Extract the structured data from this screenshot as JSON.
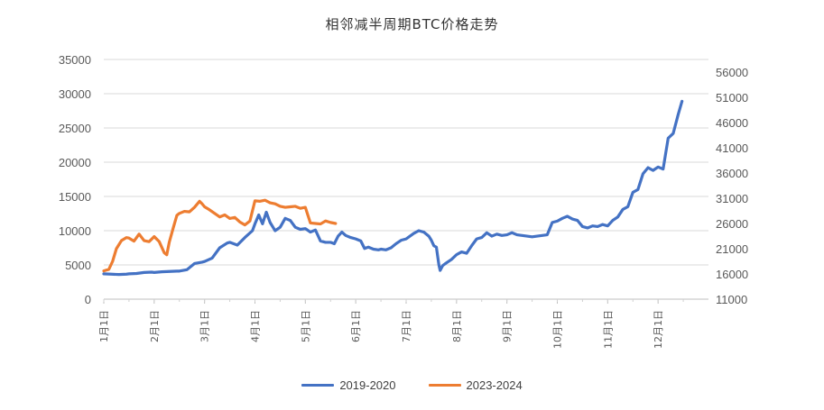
{
  "chart_data": {
    "type": "line",
    "title": "相邻减半周期BTC价格走势",
    "x_categories": [
      "1月1日",
      "2月1日",
      "3月1日",
      "4月1日",
      "5月1日",
      "6月1日",
      "7月1日",
      "8月1日",
      "9月1日",
      "10月1日",
      "11月1日",
      "12月1日"
    ],
    "y_left": {
      "ticks": [
        0,
        5000,
        10000,
        15000,
        20000,
        25000,
        30000,
        35000
      ],
      "range": [
        0,
        35000
      ]
    },
    "y_right": {
      "ticks": [
        11000,
        16000,
        21000,
        26000,
        31000,
        36000,
        41000,
        46000,
        51000,
        56000
      ],
      "range": [
        11000,
        58500
      ]
    },
    "grid": true,
    "legend_position": "bottom",
    "series": [
      {
        "name": "2019-2020",
        "axis": "left",
        "color": "#4472C4",
        "points": [
          [
            0,
            3700
          ],
          [
            0.3,
            3650
          ],
          [
            0.6,
            3600
          ],
          [
            0.9,
            3650
          ],
          [
            1.0,
            3700
          ],
          [
            1.3,
            3750
          ],
          [
            1.6,
            3900
          ],
          [
            1.9,
            3950
          ],
          [
            2.0,
            3900
          ],
          [
            2.3,
            4000
          ],
          [
            2.6,
            4050
          ],
          [
            2.9,
            4100
          ],
          [
            3.0,
            4100
          ],
          [
            3.3,
            4300
          ],
          [
            3.6,
            5200
          ],
          [
            3.9,
            5400
          ],
          [
            4.0,
            5500
          ],
          [
            4.3,
            6000
          ],
          [
            4.6,
            7500
          ],
          [
            4.9,
            8200
          ],
          [
            5.0,
            8300
          ],
          [
            5.3,
            7900
          ],
          [
            5.6,
            9000
          ],
          [
            5.9,
            10000
          ],
          [
            6.0,
            11000
          ],
          [
            6.15,
            12300
          ],
          [
            6.3,
            11000
          ],
          [
            6.45,
            12700
          ],
          [
            6.6,
            11200
          ],
          [
            6.8,
            10000
          ],
          [
            7.0,
            10500
          ],
          [
            7.2,
            11800
          ],
          [
            7.4,
            11500
          ],
          [
            7.6,
            10500
          ],
          [
            7.8,
            10200
          ],
          [
            8.0,
            10300
          ],
          [
            8.2,
            9800
          ],
          [
            8.4,
            10100
          ],
          [
            8.6,
            8500
          ],
          [
            8.8,
            8300
          ],
          [
            9.0,
            8300
          ],
          [
            9.15,
            8100
          ],
          [
            9.3,
            9200
          ],
          [
            9.45,
            9800
          ],
          [
            9.6,
            9300
          ],
          [
            9.8,
            9000
          ],
          [
            10.0,
            8800
          ],
          [
            10.2,
            8500
          ],
          [
            10.35,
            7400
          ],
          [
            10.5,
            7600
          ],
          [
            10.7,
            7300
          ],
          [
            10.9,
            7200
          ],
          [
            11.0,
            7300
          ],
          [
            11.2,
            7200
          ],
          [
            11.4,
            7500
          ],
          [
            11.6,
            8100
          ],
          [
            11.8,
            8600
          ],
          [
            12.0,
            8800
          ],
          [
            12.3,
            9600
          ],
          [
            12.5,
            10000
          ],
          [
            12.7,
            9800
          ],
          [
            12.9,
            9200
          ],
          [
            13.0,
            8600
          ],
          [
            13.1,
            7800
          ],
          [
            13.2,
            7600
          ],
          [
            13.3,
            5000
          ],
          [
            13.35,
            4200
          ],
          [
            13.45,
            4900
          ],
          [
            13.6,
            5300
          ],
          [
            13.8,
            5800
          ],
          [
            14.0,
            6500
          ],
          [
            14.2,
            6900
          ],
          [
            14.4,
            6700
          ],
          [
            14.6,
            7800
          ],
          [
            14.8,
            8800
          ],
          [
            15.0,
            9000
          ],
          [
            15.2,
            9700
          ],
          [
            15.4,
            9200
          ],
          [
            15.6,
            9500
          ],
          [
            15.8,
            9300
          ],
          [
            16.0,
            9400
          ],
          [
            16.2,
            9700
          ],
          [
            16.4,
            9400
          ],
          [
            16.6,
            9300
          ],
          [
            16.8,
            9200
          ],
          [
            17.0,
            9100
          ],
          [
            17.2,
            9200
          ],
          [
            17.4,
            9300
          ],
          [
            17.6,
            9400
          ],
          [
            17.8,
            11200
          ],
          [
            18.0,
            11400
          ],
          [
            18.2,
            11800
          ],
          [
            18.4,
            12100
          ],
          [
            18.6,
            11700
          ],
          [
            18.8,
            11500
          ],
          [
            19.0,
            10600
          ],
          [
            19.2,
            10400
          ],
          [
            19.4,
            10700
          ],
          [
            19.6,
            10600
          ],
          [
            19.8,
            10900
          ],
          [
            20.0,
            10700
          ],
          [
            20.2,
            11500
          ],
          [
            20.4,
            12000
          ],
          [
            20.6,
            13100
          ],
          [
            20.8,
            13500
          ],
          [
            21.0,
            15600
          ],
          [
            21.2,
            16000
          ],
          [
            21.4,
            18300
          ],
          [
            21.6,
            19200
          ],
          [
            21.8,
            18800
          ],
          [
            22.0,
            19300
          ],
          [
            22.2,
            19000
          ],
          [
            22.4,
            23500
          ],
          [
            22.6,
            24200
          ],
          [
            22.8,
            27000
          ],
          [
            22.95,
            28900
          ]
        ]
      },
      {
        "name": "2023-2024",
        "axis": "right",
        "color": "#ED7D31",
        "points": [
          [
            0,
            16600
          ],
          [
            0.2,
            16900
          ],
          [
            0.35,
            18500
          ],
          [
            0.5,
            21000
          ],
          [
            0.7,
            22600
          ],
          [
            0.9,
            23200
          ],
          [
            1.0,
            23100
          ],
          [
            1.2,
            22500
          ],
          [
            1.4,
            23900
          ],
          [
            1.6,
            22600
          ],
          [
            1.8,
            22400
          ],
          [
            2.0,
            23400
          ],
          [
            2.2,
            22400
          ],
          [
            2.4,
            20200
          ],
          [
            2.5,
            19800
          ],
          [
            2.6,
            22300
          ],
          [
            2.75,
            25000
          ],
          [
            2.9,
            27600
          ],
          [
            3.0,
            28000
          ],
          [
            3.2,
            28400
          ],
          [
            3.4,
            28300
          ],
          [
            3.6,
            29200
          ],
          [
            3.8,
            30400
          ],
          [
            3.9,
            29900
          ],
          [
            4.0,
            29300
          ],
          [
            4.2,
            28700
          ],
          [
            4.4,
            28000
          ],
          [
            4.6,
            27300
          ],
          [
            4.8,
            27700
          ],
          [
            5.0,
            27000
          ],
          [
            5.2,
            27200
          ],
          [
            5.4,
            26300
          ],
          [
            5.6,
            25700
          ],
          [
            5.8,
            26500
          ],
          [
            6.0,
            30500
          ],
          [
            6.2,
            30400
          ],
          [
            6.4,
            30600
          ],
          [
            6.6,
            30100
          ],
          [
            6.8,
            29900
          ],
          [
            7.0,
            29400
          ],
          [
            7.2,
            29200
          ],
          [
            7.4,
            29300
          ],
          [
            7.6,
            29400
          ],
          [
            7.8,
            29000
          ],
          [
            8.0,
            29200
          ],
          [
            8.2,
            26100
          ],
          [
            8.4,
            26000
          ],
          [
            8.6,
            25900
          ],
          [
            8.8,
            26500
          ],
          [
            9.0,
            26200
          ],
          [
            9.2,
            26000
          ]
        ]
      }
    ]
  }
}
